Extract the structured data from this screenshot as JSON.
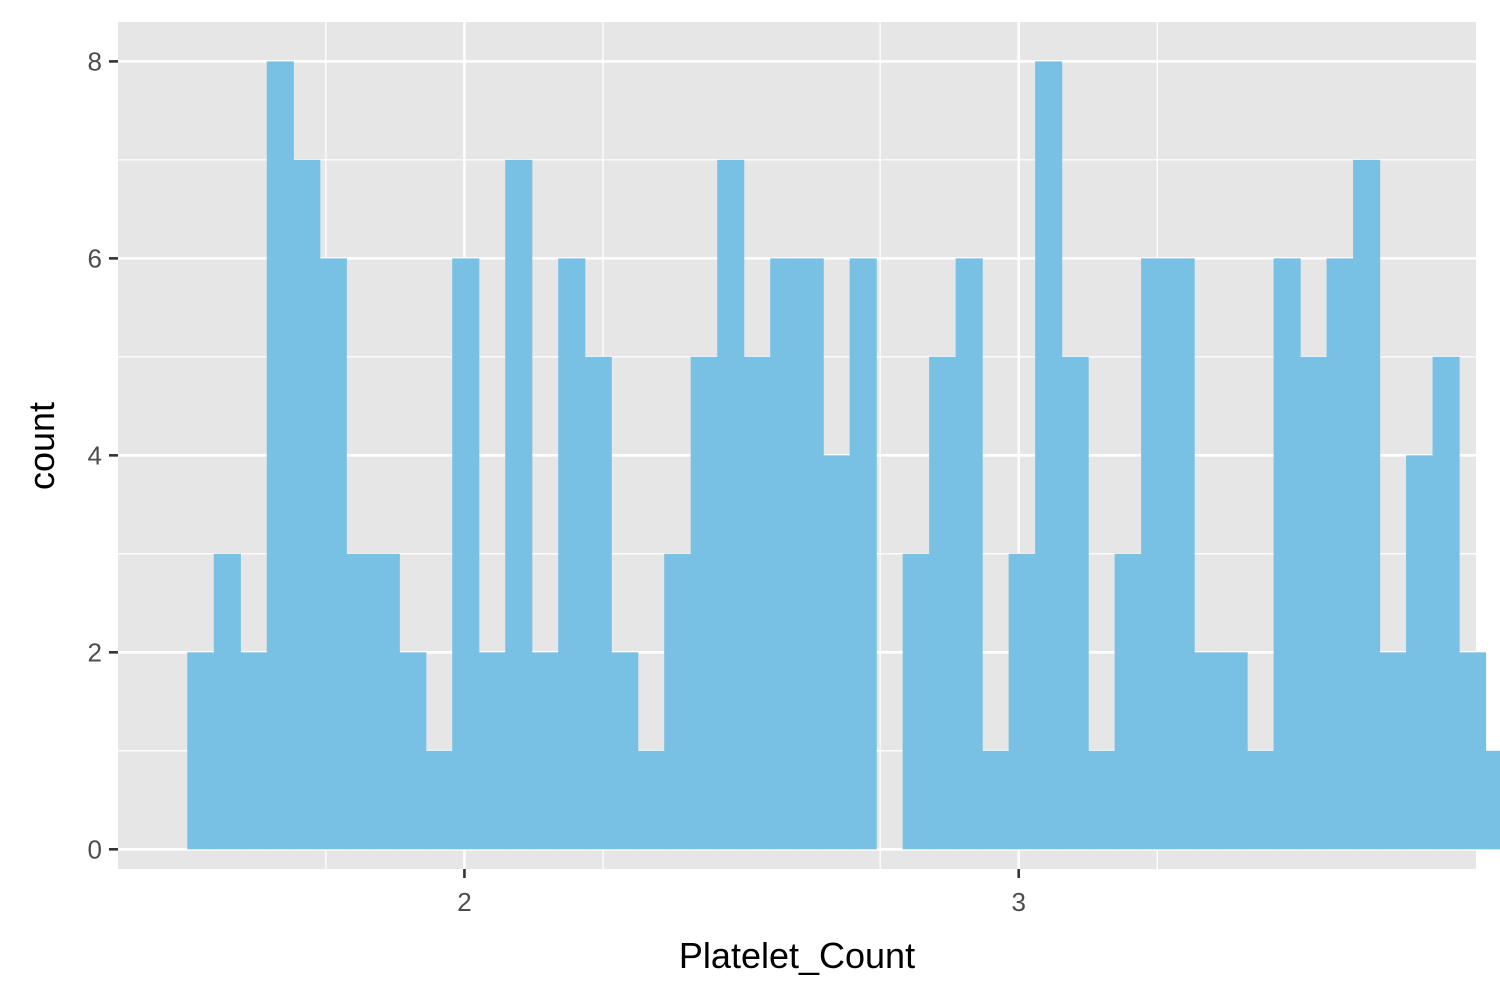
{
  "chart_data": {
    "type": "bar",
    "subtype": "histogram",
    "title": "",
    "xlabel": "Platelet_Count",
    "ylabel": "count",
    "xlim": [
      1.375,
      3.825
    ],
    "ylim": [
      -0.2,
      8.4
    ],
    "bin_width": 0.0478,
    "first_bin_left": 1.5,
    "x_ticks": [
      2,
      3
    ],
    "x_tick_labels": [
      "2",
      "3"
    ],
    "x_minor_ticks": [
      1.75,
      2.25,
      2.75,
      3.25
    ],
    "y_ticks": [
      0,
      2,
      4,
      6,
      8
    ],
    "y_tick_labels": [
      "0",
      "2",
      "4",
      "6",
      "8"
    ],
    "y_minor_ticks": [
      1,
      3,
      5,
      7
    ],
    "counts": [
      2,
      3,
      2,
      8,
      7,
      6,
      3,
      3,
      2,
      1,
      6,
      2,
      7,
      2,
      6,
      5,
      2,
      1,
      3,
      5,
      7,
      5,
      6,
      6,
      4,
      6,
      0,
      3,
      5,
      6,
      1,
      3,
      8,
      5,
      1,
      3,
      6,
      6,
      2,
      2,
      1,
      6,
      5,
      6,
      7,
      2,
      4,
      5,
      2,
      1
    ],
    "grid": true,
    "legend": "none",
    "colors": {
      "bar": "#79C1E4",
      "panel": "#E6E6E6",
      "grid": "#FFFFFF",
      "tick": "#333333"
    }
  }
}
